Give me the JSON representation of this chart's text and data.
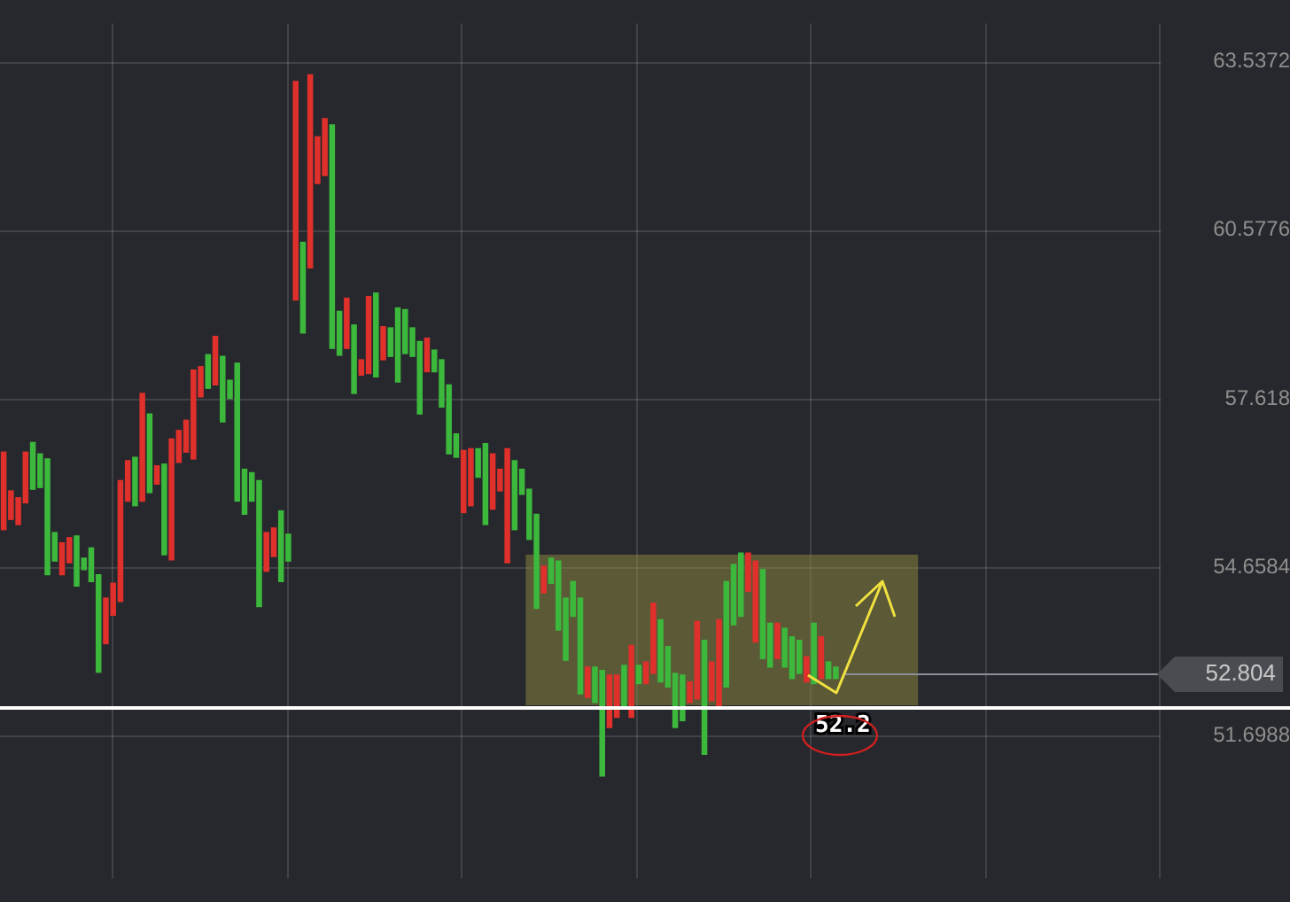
{
  "chart_data": {
    "type": "candlestick",
    "categories": [
      null,
      null,
      null,
      null,
      null,
      null,
      null,
      null,
      null,
      null,
      null,
      null,
      null,
      null,
      null,
      null,
      null,
      null,
      null,
      null,
      null,
      null,
      null,
      null,
      null,
      null,
      null,
      null,
      null,
      null,
      null,
      null,
      null,
      null,
      null,
      null,
      null,
      null,
      null,
      null,
      null,
      null,
      null,
      null,
      null,
      null,
      null,
      null,
      null,
      null,
      null,
      null,
      null,
      null,
      null,
      null,
      null,
      null,
      null,
      null,
      null,
      null,
      null,
      null,
      null,
      null,
      null,
      null,
      null,
      null,
      null,
      null,
      null,
      null,
      null,
      null,
      null,
      null,
      null,
      null,
      null,
      null,
      null,
      null,
      null,
      null,
      null,
      null,
      null,
      null,
      null,
      null,
      null,
      null,
      null,
      null,
      null,
      null,
      null,
      null,
      null,
      null,
      null,
      null,
      null,
      null,
      null,
      null,
      null,
      null,
      null,
      null,
      null,
      null,
      null,
      null,
      null,
      null,
      null,
      null,
      null,
      null,
      null,
      null,
      null,
      null,
      null,
      null,
      null,
      null,
      null,
      null,
      null,
      null,
      null,
      null,
      null,
      null,
      null,
      null,
      null,
      null,
      null,
      null,
      null,
      null,
      null,
      null,
      null,
      null,
      null,
      null,
      null,
      null,
      null,
      null,
      null,
      null,
      null
    ],
    "ohlc": [
      [
        55.32,
        56.68,
        55.32,
        56.68
      ],
      [
        55.5,
        56.0,
        55.5,
        56.0
      ],
      [
        55.41,
        55.88,
        55.41,
        55.88
      ],
      [
        55.79,
        56.68,
        55.79,
        56.68
      ],
      [
        56.85,
        56.85,
        56.03,
        56.03
      ],
      [
        56.65,
        56.65,
        56.06,
        56.06
      ],
      [
        56.56,
        56.56,
        54.53,
        54.53
      ],
      [
        55.27,
        55.27,
        54.77,
        54.77
      ],
      [
        54.53,
        55.09,
        54.53,
        55.09
      ],
      [
        54.74,
        55.18,
        54.74,
        55.18
      ],
      [
        55.21,
        55.21,
        54.33,
        54.33
      ],
      [
        54.82,
        54.82,
        54.62,
        54.62
      ],
      [
        55.0,
        55.0,
        54.41,
        54.41
      ],
      [
        54.53,
        54.53,
        52.82,
        52.82
      ],
      [
        53.32,
        54.12,
        53.32,
        54.12
      ],
      [
        53.82,
        54.38,
        53.82,
        54.38
      ],
      [
        54.06,
        56.18,
        54.06,
        56.18
      ],
      [
        55.82,
        56.53,
        55.82,
        56.53
      ],
      [
        56.59,
        56.59,
        55.74,
        55.74
      ],
      [
        55.82,
        57.71,
        55.82,
        57.71
      ],
      [
        57.35,
        57.35,
        55.97,
        55.97
      ],
      [
        56.12,
        56.44,
        56.12,
        56.44
      ],
      [
        56.47,
        56.47,
        54.88,
        54.88
      ],
      [
        54.79,
        56.91,
        54.79,
        56.91
      ],
      [
        56.5,
        57.06,
        56.5,
        57.06
      ],
      [
        56.68,
        57.24,
        56.68,
        57.24
      ],
      [
        56.56,
        58.12,
        56.56,
        58.12
      ],
      [
        57.65,
        58.18,
        57.65,
        58.18
      ],
      [
        58.39,
        58.39,
        57.8,
        57.8
      ],
      [
        57.86,
        58.71,
        57.86,
        58.71
      ],
      [
        58.36,
        58.36,
        57.21,
        57.21
      ],
      [
        57.94,
        57.94,
        57.62,
        57.62
      ],
      [
        58.24,
        58.24,
        55.82,
        55.82
      ],
      [
        56.38,
        56.38,
        55.59,
        55.59
      ],
      [
        56.32,
        56.32,
        55.82,
        55.82
      ],
      [
        56.18,
        56.18,
        53.97,
        53.97
      ],
      [
        54.59,
        55.27,
        54.59,
        55.27
      ],
      [
        54.85,
        55.35,
        54.85,
        55.35
      ],
      [
        55.65,
        55.65,
        54.41,
        54.41
      ],
      [
        55.24,
        55.24,
        54.77,
        54.77
      ],
      [
        59.35,
        63.18,
        59.35,
        63.18
      ],
      [
        60.36,
        60.36,
        58.77,
        58.77
      ],
      [
        59.91,
        63.3,
        59.91,
        63.3
      ],
      [
        61.39,
        62.21,
        61.39,
        62.21
      ],
      [
        61.53,
        62.53,
        61.53,
        62.53
      ],
      [
        62.42,
        62.42,
        58.5,
        58.5
      ],
      [
        59.15,
        59.15,
        58.38,
        58.38
      ],
      [
        58.5,
        59.38,
        58.5,
        59.38
      ],
      [
        58.91,
        58.91,
        57.71,
        57.71
      ],
      [
        58.03,
        58.3,
        58.03,
        58.3
      ],
      [
        58.06,
        59.41,
        58.06,
        59.41
      ],
      [
        59.47,
        59.47,
        58.0,
        58.0
      ],
      [
        58.3,
        58.88,
        58.3,
        58.88
      ],
      [
        58.86,
        58.86,
        58.36,
        58.36
      ],
      [
        59.21,
        59.21,
        57.91,
        57.91
      ],
      [
        59.18,
        59.18,
        58.41,
        58.41
      ],
      [
        58.86,
        58.86,
        58.36,
        58.36
      ],
      [
        58.62,
        58.62,
        57.35,
        57.35
      ],
      [
        58.09,
        58.68,
        58.09,
        58.68
      ],
      [
        58.47,
        58.47,
        58.09,
        58.09
      ],
      [
        58.3,
        58.3,
        57.47,
        57.47
      ],
      [
        57.86,
        57.86,
        56.65,
        56.65
      ],
      [
        57.0,
        57.0,
        56.59,
        56.59
      ],
      [
        55.62,
        56.71,
        55.62,
        56.71
      ],
      [
        55.74,
        56.74,
        55.74,
        56.74
      ],
      [
        56.74,
        56.74,
        56.24,
        56.24
      ],
      [
        56.83,
        56.83,
        55.41,
        55.41
      ],
      [
        55.68,
        56.65,
        55.68,
        56.65
      ],
      [
        56.0,
        56.38,
        56.0,
        56.38
      ],
      [
        54.74,
        56.74,
        54.74,
        56.74
      ],
      [
        56.53,
        56.53,
        55.32,
        55.32
      ],
      [
        56.38,
        56.38,
        55.94,
        55.94
      ],
      [
        56.03,
        56.03,
        55.15,
        55.15
      ],
      [
        55.59,
        55.59,
        53.94,
        53.94
      ],
      [
        54.21,
        54.68,
        54.21,
        54.68
      ],
      [
        54.82,
        54.82,
        54.38,
        54.38
      ],
      [
        54.77,
        54.77,
        53.56,
        53.56
      ],
      [
        54.12,
        54.12,
        53.03,
        53.03
      ],
      [
        54.41,
        54.41,
        53.8,
        53.8
      ],
      [
        54.12,
        54.12,
        52.44,
        52.44
      ],
      [
        52.38,
        52.91,
        52.38,
        52.91
      ],
      [
        52.91,
        52.91,
        52.29,
        52.29
      ],
      [
        52.85,
        52.85,
        51.0,
        51.0
      ],
      [
        51.85,
        52.77,
        51.85,
        52.77
      ],
      [
        52.03,
        52.77,
        52.03,
        52.77
      ],
      [
        52.94,
        52.94,
        52.21,
        52.21
      ],
      [
        52.03,
        53.29,
        52.03,
        53.29
      ],
      [
        52.94,
        52.94,
        52.62,
        52.62
      ],
      [
        52.62,
        53.0,
        52.62,
        53.0
      ],
      [
        52.8,
        54.03,
        52.8,
        54.03
      ],
      [
        53.74,
        53.74,
        52.65,
        52.65
      ],
      [
        53.27,
        53.27,
        52.56,
        52.56
      ],
      [
        52.8,
        52.8,
        51.85,
        51.85
      ],
      [
        52.77,
        52.77,
        51.97,
        51.97
      ],
      [
        52.29,
        52.65,
        52.29,
        52.65
      ],
      [
        52.35,
        53.71,
        52.35,
        53.71
      ],
      [
        53.38,
        53.38,
        51.38,
        51.38
      ],
      [
        52.32,
        53.0,
        52.32,
        53.0
      ],
      [
        52.18,
        53.74,
        52.18,
        53.74
      ],
      [
        54.41,
        54.41,
        52.56,
        52.56
      ],
      [
        54.71,
        54.71,
        53.65,
        53.65
      ],
      [
        54.91,
        54.91,
        53.8,
        53.8
      ],
      [
        54.24,
        54.91,
        54.24,
        54.91
      ],
      [
        53.35,
        54.77,
        53.35,
        54.77
      ],
      [
        54.62,
        54.62,
        53.06,
        53.06
      ],
      [
        53.68,
        53.68,
        52.91,
        52.91
      ],
      [
        53.06,
        53.68,
        53.06,
        53.68
      ],
      [
        53.59,
        53.59,
        52.91,
        52.91
      ],
      [
        53.44,
        53.44,
        52.71,
        52.71
      ],
      [
        53.38,
        53.38,
        52.8,
        52.8
      ],
      [
        52.65,
        53.09,
        52.65,
        53.09
      ],
      [
        53.68,
        53.68,
        52.62,
        52.62
      ],
      [
        52.71,
        53.44,
        52.71,
        53.44
      ],
      [
        53.0,
        53.0,
        52.71,
        52.71
      ],
      [
        52.91,
        52.91,
        52.71,
        52.71
      ],
      null,
      null,
      null,
      null,
      null,
      null,
      null,
      null,
      null,
      null,
      null,
      null,
      null,
      null,
      null,
      null,
      null,
      null,
      null,
      null,
      null,
      null,
      null,
      null,
      null,
      null,
      null,
      null,
      null,
      null,
      null,
      null,
      null,
      null,
      null,
      null,
      null,
      null,
      null,
      null,
      null,
      null,
      null,
      null
    ],
    "colors": [
      "#e0302c",
      "#e0302c",
      "#e0302c",
      "#e0302c",
      "#3cb83c",
      "#3cb83c",
      "#3cb83c",
      "#3cb83c",
      "#e0302c",
      "#e0302c",
      "#3cb83c",
      "#3cb83c",
      "#3cb83c",
      "#3cb83c",
      "#e0302c",
      "#e0302c",
      "#e0302c",
      "#e0302c",
      "#3cb83c",
      "#e0302c",
      "#3cb83c",
      "#e0302c",
      "#3cb83c",
      "#e0302c",
      "#e0302c",
      "#e0302c",
      "#e0302c",
      "#e0302c",
      "#3cb83c",
      "#e0302c",
      "#3cb83c",
      "#3cb83c",
      "#3cb83c",
      "#3cb83c",
      "#3cb83c",
      "#3cb83c",
      "#e0302c",
      "#e0302c",
      "#3cb83c",
      "#3cb83c",
      "#e0302c",
      "#3cb83c",
      "#e0302c",
      "#e0302c",
      "#e0302c",
      "#3cb83c",
      "#3cb83c",
      "#e0302c",
      "#3cb83c",
      "#e0302c",
      "#e0302c",
      "#3cb83c",
      "#e0302c",
      "#3cb83c",
      "#3cb83c",
      "#3cb83c",
      "#3cb83c",
      "#3cb83c",
      "#e0302c",
      "#3cb83c",
      "#3cb83c",
      "#3cb83c",
      "#3cb83c",
      "#e0302c",
      "#e0302c",
      "#3cb83c",
      "#3cb83c",
      "#e0302c",
      "#e0302c",
      "#e0302c",
      "#3cb83c",
      "#3cb83c",
      "#3cb83c",
      "#3cb83c",
      "#e0302c",
      "#3cb83c",
      "#3cb83c",
      "#3cb83c",
      "#3cb83c",
      "#3cb83c",
      "#e0302c",
      "#3cb83c",
      "#3cb83c",
      "#e0302c",
      "#e0302c",
      "#3cb83c",
      "#e0302c",
      "#3cb83c",
      "#e0302c",
      "#e0302c",
      "#3cb83c",
      "#3cb83c",
      "#3cb83c",
      "#3cb83c",
      "#e0302c",
      "#e0302c",
      "#3cb83c",
      "#e0302c",
      "#e0302c",
      "#3cb83c",
      "#3cb83c",
      "#3cb83c",
      "#e0302c",
      "#e0302c",
      "#3cb83c",
      "#3cb83c",
      "#e0302c",
      "#3cb83c",
      "#3cb83c",
      "#3cb83c",
      "#e0302c",
      "#3cb83c",
      "#e0302c",
      "#3cb83c",
      "#3cb83c",
      null,
      null,
      null,
      null,
      null,
      null,
      null,
      null,
      null,
      null,
      null,
      null,
      null,
      null,
      null,
      null,
      null,
      null,
      null,
      null,
      null,
      null,
      null,
      null,
      null,
      null,
      null,
      null,
      null,
      null,
      null,
      null,
      null,
      null,
      null,
      null,
      null,
      null,
      null,
      null,
      null,
      null,
      null,
      null
    ],
    "ylim": [
      49.2,
      64.2
    ],
    "yticks": [
      51.6988,
      54.6584,
      57.618,
      60.5776,
      63.5372
    ],
    "grid": true,
    "ref_lines": [
      {
        "axis": "y",
        "value": 52.2,
        "label": "52.2",
        "color": "#ffffff"
      },
      {
        "axis": "y",
        "value": 52.804,
        "label": "52.804",
        "color": "#8a8f9a"
      }
    ],
    "bands": [
      {
        "axis": "y",
        "from": 52.24,
        "to": 54.88,
        "color": "#8f8a40"
      }
    ]
  }
}
